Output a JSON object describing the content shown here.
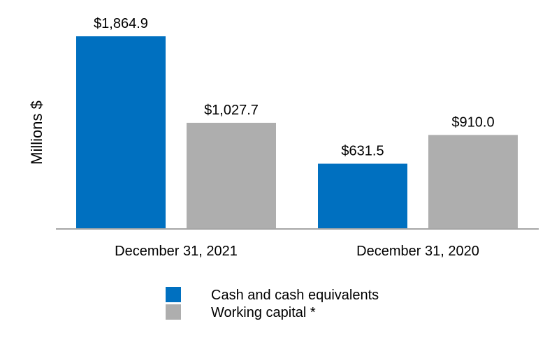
{
  "chart_data": {
    "type": "bar",
    "title": "",
    "xlabel": "",
    "ylabel": "Millions $",
    "categories": [
      "December 31, 2021",
      "December 31, 2020"
    ],
    "series": [
      {
        "name": "Cash and cash equivalents",
        "values": [
          1864.9,
          631.5
        ],
        "labels": [
          "$1,864.9",
          "$631.5"
        ],
        "color": "#0070C0"
      },
      {
        "name": "Working capital *",
        "values": [
          1027.7,
          910.0
        ],
        "labels": [
          "$1,027.7",
          "$910.0"
        ],
        "color": "#AEAEAE"
      }
    ],
    "ylim": [
      0,
      1864.9
    ],
    "grid": false,
    "legend_position": "bottom"
  },
  "colors": {
    "axis": "#A6A6A6",
    "text": "#000000"
  }
}
